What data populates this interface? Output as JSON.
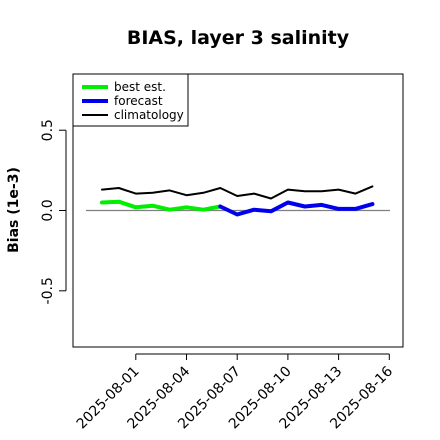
{
  "chart_data": {
    "type": "line",
    "title": "BIAS, layer 3 salinity",
    "ylabel": "Bias (1e-3)",
    "xlabel": "",
    "ylim": [
      -0.85,
      0.85
    ],
    "yticks": [
      -0.5,
      0.0,
      0.5
    ],
    "ytick_labels": [
      "-0.5",
      "0.0",
      "0.5"
    ],
    "reference_line": 0.0,
    "x": [
      "2025-07-30",
      "2025-07-31",
      "2025-08-01",
      "2025-08-02",
      "2025-08-03",
      "2025-08-04",
      "2025-08-05",
      "2025-08-06",
      "2025-08-07",
      "2025-08-08",
      "2025-08-09",
      "2025-08-10",
      "2025-08-11",
      "2025-08-12",
      "2025-08-13",
      "2025-08-14",
      "2025-08-15",
      "2025-08-16"
    ],
    "xticks": [
      "2025-08-01",
      "2025-08-04",
      "2025-08-07",
      "2025-08-10",
      "2025-08-13",
      "2025-08-16"
    ],
    "xtick_colors": [
      "#000000",
      "#000000",
      "#228b22",
      "#000000",
      "#000000",
      "#000000"
    ],
    "series": [
      {
        "name": "best est.",
        "color": "#00ee00",
        "width": 4,
        "values": [
          0.05,
          0.055,
          0.02,
          0.03,
          0.005,
          0.02,
          0.005,
          0.025,
          null,
          null,
          null,
          null,
          null,
          null,
          null,
          null,
          null,
          null
        ]
      },
      {
        "name": "forecast",
        "color": "#0000ee",
        "width": 4,
        "values": [
          null,
          null,
          null,
          null,
          null,
          null,
          null,
          0.025,
          -0.025,
          0.005,
          -0.005,
          0.05,
          0.025,
          0.035,
          0.01,
          0.01,
          0.04,
          null
        ]
      },
      {
        "name": "climatology",
        "color": "#000000",
        "width": 2,
        "values": [
          0.13,
          0.14,
          0.105,
          0.11,
          0.125,
          0.095,
          0.11,
          0.14,
          0.09,
          0.105,
          0.075,
          0.13,
          0.12,
          0.12,
          0.13,
          0.105,
          0.15,
          null
        ]
      }
    ],
    "legend": {
      "position": "top-left",
      "entries": [
        "best est.",
        "forecast",
        "climatology"
      ]
    }
  }
}
